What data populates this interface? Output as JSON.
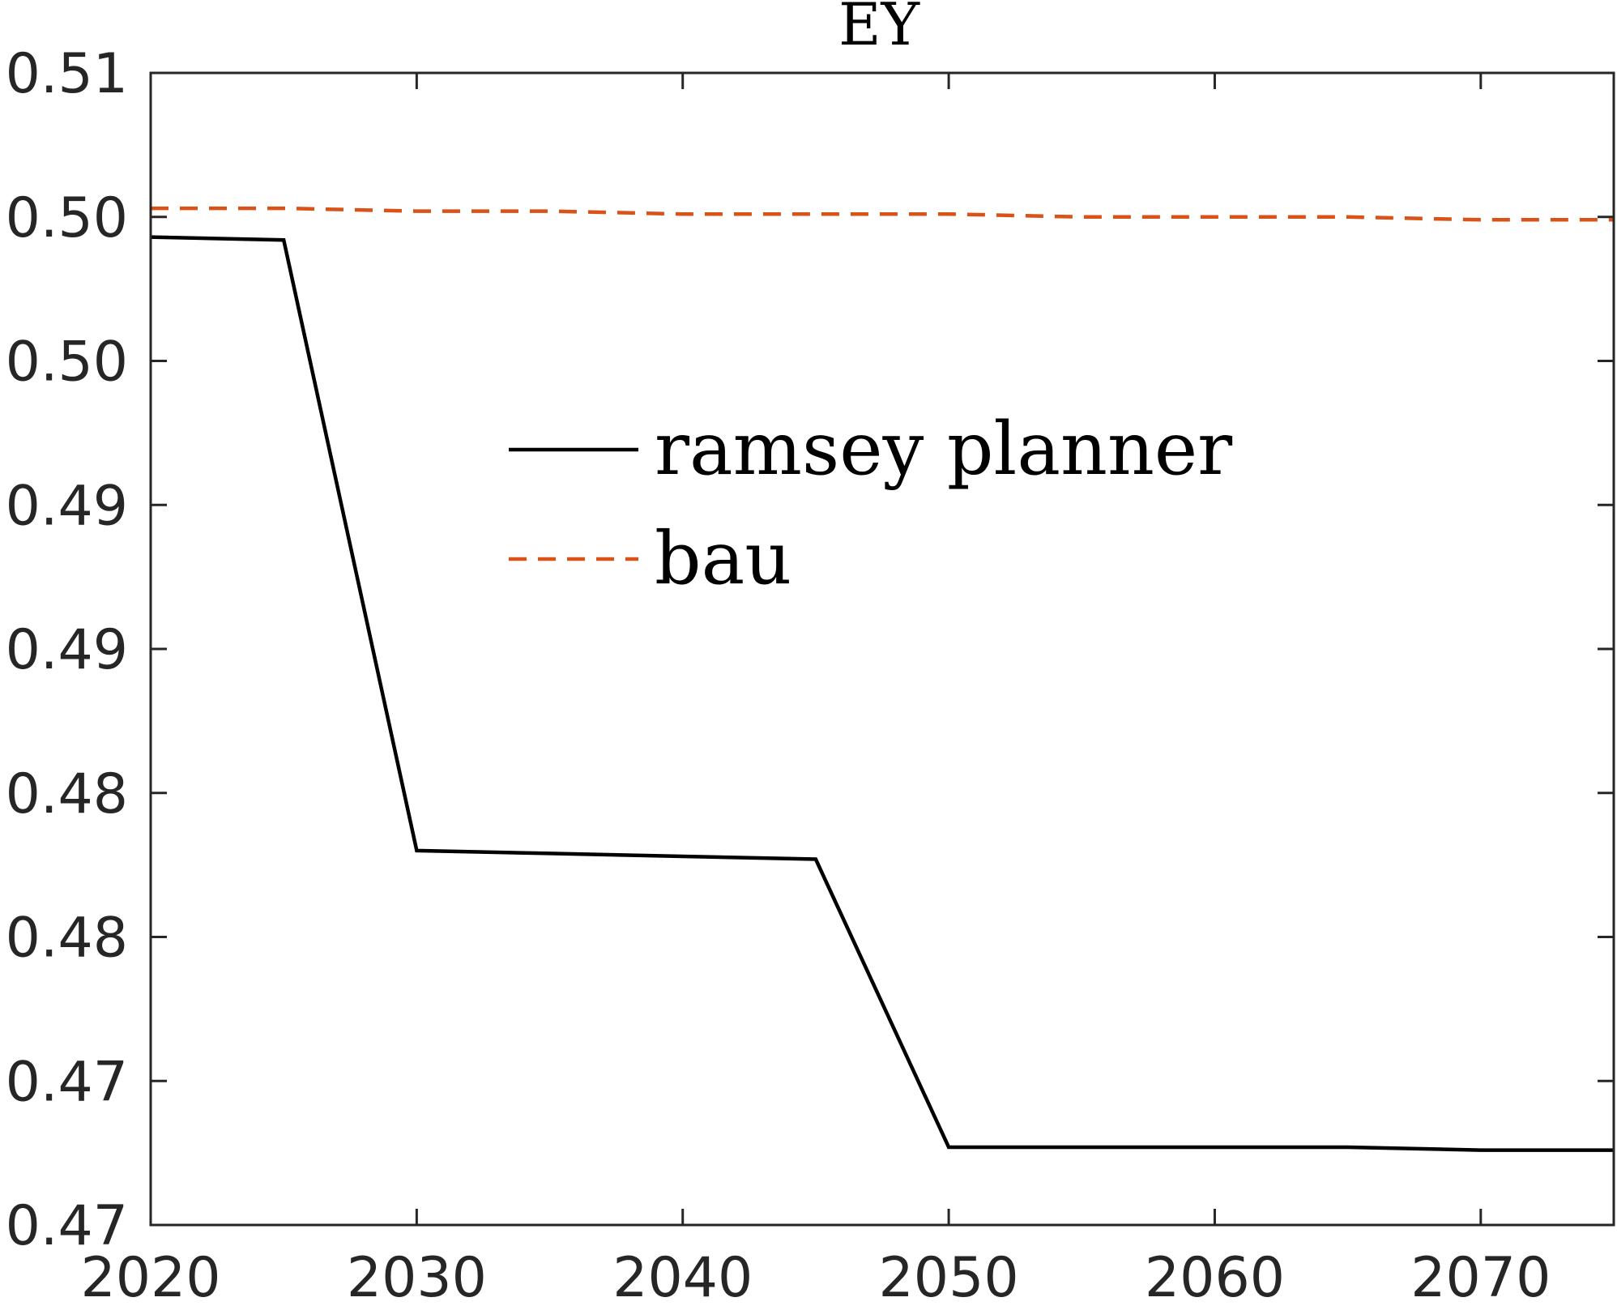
{
  "chart_data": {
    "type": "line",
    "title": "EY",
    "xlabel": "",
    "ylabel": "",
    "xlim": [
      2020,
      2075
    ],
    "ylim": [
      0.4675,
      0.5075
    ],
    "x_ticks": [
      2020,
      2030,
      2040,
      2050,
      2060,
      2070
    ],
    "y_tick_values": [
      0.4675,
      0.4725,
      0.4775,
      0.4825,
      0.4875,
      0.4925,
      0.4975,
      0.5025,
      0.5075
    ],
    "y_tick_labels": [
      "0.47",
      "0.47",
      "0.48",
      "0.48",
      "0.49",
      "0.49",
      "0.50",
      "0.50",
      "0.51"
    ],
    "grid": false,
    "legend_position": "center",
    "series": [
      {
        "name": "ramsey planner",
        "color": "#000000",
        "dash": "solid",
        "x": [
          2020,
          2025,
          2030,
          2035,
          2040,
          2045,
          2050,
          2055,
          2060,
          2065,
          2070,
          2075
        ],
        "y": [
          0.5018,
          0.5017,
          0.4805,
          0.4804,
          0.4803,
          0.4802,
          0.4702,
          0.4702,
          0.4702,
          0.4702,
          0.4701,
          0.4701
        ]
      },
      {
        "name": "bau",
        "color": "#D95319",
        "dash": "dashed",
        "x": [
          2020,
          2025,
          2030,
          2035,
          2040,
          2045,
          2050,
          2055,
          2060,
          2065,
          2070,
          2075
        ],
        "y": [
          0.5028,
          0.5028,
          0.5027,
          0.5027,
          0.5026,
          0.5026,
          0.5026,
          0.5025,
          0.5025,
          0.5025,
          0.5024,
          0.5024
        ]
      }
    ]
  }
}
